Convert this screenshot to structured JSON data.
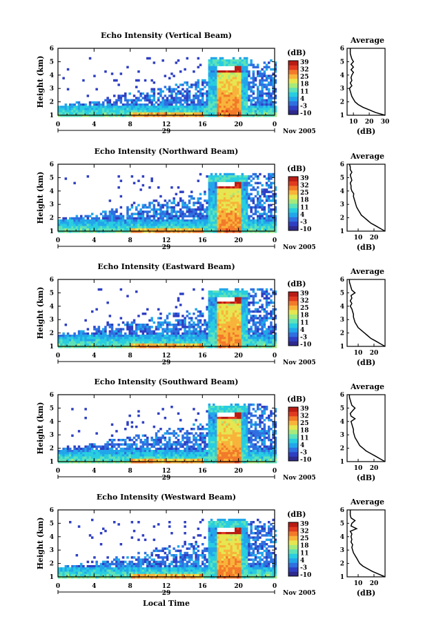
{
  "colors": {
    "colormap": [
      "#2e2a8c",
      "#2f3fc2",
      "#2f6fe0",
      "#22a6ea",
      "#28cde0",
      "#5ee2b8",
      "#a6ea7a",
      "#e6e650",
      "#f8b43a",
      "#f27a2a",
      "#e03a20",
      "#b81c14"
    ],
    "echo_fill": "#5478e6",
    "background": "#ffffff"
  },
  "shared": {
    "xticks": [
      "0",
      "4",
      "8",
      "12",
      "16",
      "20",
      "0"
    ],
    "yticks": [
      "1",
      "2",
      "3",
      "4",
      "5",
      "6"
    ],
    "ylabel": "Height (km)",
    "date_day": "29",
    "date_label": "Nov 2005",
    "colorbar_unit": "(dB)",
    "colorbar_ticks": [
      "39",
      "32",
      "25",
      "18",
      "11",
      "4",
      "-3",
      "-10"
    ],
    "avg_title": "Average",
    "avg_xlabel": "(dB)",
    "bottom_xlabel": "Local Time"
  },
  "chart_data": [
    {
      "type": "heatmap",
      "title": "Echo Intensity (Vertical Beam)",
      "beam": "vertical",
      "xlabel": "Local Time",
      "ylabel": "Height (km)",
      "xlim": [
        0,
        24
      ],
      "ylim": [
        1,
        6
      ],
      "colorbar_range_dB": [
        -10,
        39
      ],
      "features": {
        "rain_start_h": 16.8,
        "rain_end_h": 20.6,
        "bright_band_km": 4.5,
        "echo_top_km": 4.8,
        "low_layer_top_km": 1.8
      },
      "average_profile": {
        "xticks": [
          "10",
          "20",
          "30"
        ],
        "xlim": [
          6,
          30
        ],
        "height_km": [
          1.0,
          1.2,
          1.4,
          1.6,
          1.8,
          2.0,
          2.2,
          2.4,
          2.6,
          2.8,
          3.0,
          3.2,
          3.4,
          3.6,
          3.8,
          4.0,
          4.2,
          4.4,
          4.6,
          4.8,
          5.0,
          5.2,
          5.4,
          5.6,
          5.8,
          6.0
        ],
        "dB": [
          30,
          24,
          20,
          16,
          13,
          11,
          10,
          9,
          8.5,
          8,
          7.5,
          9,
          8,
          9,
          8.5,
          9,
          10,
          8.5,
          10,
          8.5,
          10,
          9,
          8.5,
          8,
          8,
          8
        ]
      }
    },
    {
      "type": "heatmap",
      "title": "Echo Intensity (Northward Beam)",
      "beam": "northward",
      "xlabel": "Local Time",
      "ylabel": "Height (km)",
      "xlim": [
        0,
        24
      ],
      "ylim": [
        1,
        6
      ],
      "colorbar_range_dB": [
        -10,
        39
      ],
      "features": {
        "rain_start_h": 16.8,
        "rain_end_h": 20.6,
        "bright_band_km": 4.5,
        "echo_top_km": 4.8,
        "low_layer_top_km": 2.0
      },
      "average_profile": {
        "xticks": [
          "10",
          "20"
        ],
        "xlim": [
          3,
          27
        ],
        "height_km": [
          1.0,
          1.2,
          1.4,
          1.6,
          1.8,
          2.0,
          2.2,
          2.4,
          2.6,
          2.8,
          3.0,
          3.2,
          3.4,
          3.6,
          3.8,
          4.0,
          4.2,
          4.4,
          4.6,
          4.8,
          5.0,
          5.2,
          5.4,
          5.6,
          5.8,
          6.0
        ],
        "dB": [
          27,
          24,
          21,
          18,
          16,
          14,
          12,
          11,
          10,
          9,
          8.5,
          8,
          7.5,
          7,
          7.2,
          6,
          5.5,
          5.5,
          5,
          6,
          5.5,
          5,
          6,
          5,
          5,
          4.5
        ]
      }
    },
    {
      "type": "heatmap",
      "title": "Echo Intensity (Eastward Beam)",
      "beam": "eastward",
      "xlabel": "Local Time",
      "ylabel": "Height (km)",
      "xlim": [
        0,
        24
      ],
      "ylim": [
        1,
        6
      ],
      "colorbar_range_dB": [
        -10,
        39
      ],
      "features": {
        "rain_start_h": 16.8,
        "rain_end_h": 20.6,
        "bright_band_km": 4.5,
        "echo_top_km": 4.8,
        "low_layer_top_km": 2.0
      },
      "average_profile": {
        "xticks": [
          "10",
          "20"
        ],
        "xlim": [
          3,
          27
        ],
        "height_km": [
          1.0,
          1.2,
          1.4,
          1.6,
          1.8,
          2.0,
          2.2,
          2.4,
          2.6,
          2.8,
          3.0,
          3.2,
          3.4,
          3.6,
          3.8,
          4.0,
          4.2,
          4.4,
          4.6,
          4.8,
          5.0,
          5.2,
          5.4,
          5.6,
          5.8,
          6.0
        ],
        "dB": [
          27,
          24,
          21,
          18,
          16,
          14,
          12,
          10,
          9,
          8,
          7.5,
          7,
          7,
          6.5,
          6,
          5,
          6,
          5,
          6,
          5.5,
          8,
          6,
          5.5,
          5,
          4.5,
          4.5
        ]
      }
    },
    {
      "type": "heatmap",
      "title": "Echo Intensity (Southward Beam)",
      "beam": "southward",
      "xlabel": "Local Time",
      "ylabel": "Height (km)",
      "xlim": [
        0,
        24
      ],
      "ylim": [
        1,
        6
      ],
      "colorbar_range_dB": [
        -10,
        39
      ],
      "features": {
        "rain_start_h": 16.8,
        "rain_end_h": 20.6,
        "bright_band_km": 4.5,
        "echo_top_km": 4.8,
        "low_layer_top_km": 2.0
      },
      "average_profile": {
        "xticks": [
          "10",
          "20"
        ],
        "xlim": [
          3,
          27
        ],
        "height_km": [
          1.0,
          1.2,
          1.4,
          1.6,
          1.8,
          2.0,
          2.2,
          2.4,
          2.6,
          2.8,
          3.0,
          3.2,
          3.4,
          3.6,
          3.8,
          4.0,
          4.2,
          4.4,
          4.6,
          4.8,
          5.0,
          5.2,
          5.4,
          5.6,
          5.8,
          6.0
        ],
        "dB": [
          27,
          24,
          21,
          18,
          15,
          13,
          11,
          10,
          9,
          8,
          7.5,
          7,
          7,
          6.5,
          6,
          5.5,
          8,
          5.5,
          5,
          6.5,
          8,
          6,
          5.5,
          5,
          4.5,
          4.5
        ]
      }
    },
    {
      "type": "heatmap",
      "title": "Echo Intensity (Westward Beam)",
      "beam": "westward",
      "xlabel": "Local Time",
      "ylabel": "Height (km)",
      "xlim": [
        0,
        24
      ],
      "ylim": [
        1,
        6
      ],
      "colorbar_range_dB": [
        -10,
        39
      ],
      "features": {
        "rain_start_h": 16.8,
        "rain_end_h": 20.6,
        "bright_band_km": 4.5,
        "echo_top_km": 4.8,
        "low_layer_top_km": 1.8
      },
      "average_profile": {
        "xticks": [
          "10",
          "20"
        ],
        "xlim": [
          3,
          27
        ],
        "height_km": [
          1.0,
          1.2,
          1.4,
          1.6,
          1.8,
          2.0,
          2.2,
          2.4,
          2.6,
          2.8,
          3.0,
          3.2,
          3.4,
          3.6,
          3.8,
          4.0,
          4.2,
          4.4,
          4.6,
          4.8,
          5.0,
          5.2,
          5.4,
          5.6,
          5.8,
          6.0
        ],
        "dB": [
          27,
          23,
          19,
          16,
          13,
          11,
          10,
          9,
          8,
          7,
          6.5,
          6,
          6.5,
          5.5,
          6,
          5.5,
          6,
          5,
          9,
          5.5,
          6,
          8,
          5.5,
          5,
          5,
          5
        ]
      }
    }
  ]
}
